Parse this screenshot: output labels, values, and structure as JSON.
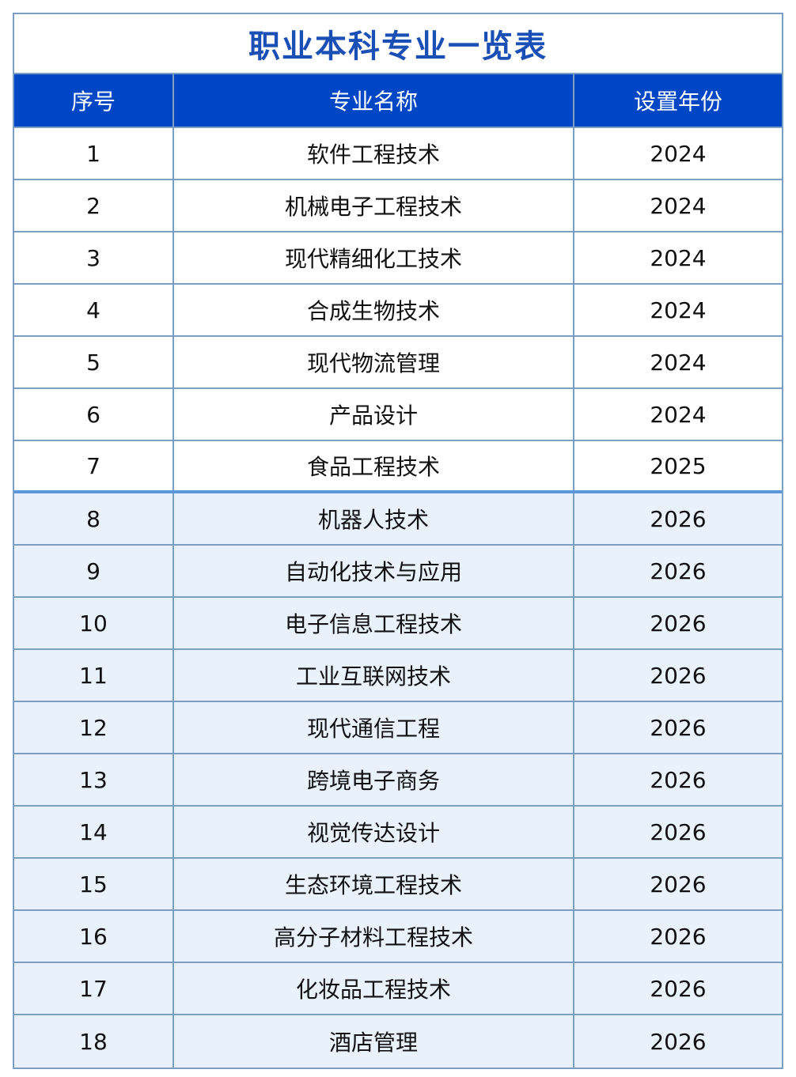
{
  "title": "职业本科专业一览表",
  "colors": {
    "header_bg": "#0047c6",
    "title": "#1a4fb5",
    "alt_row_bg": "#e8f1fc",
    "border": "#7a9fc4"
  },
  "headers": [
    "序号",
    "专业名称",
    "设置年份"
  ],
  "rows": [
    [
      "1",
      "软件工程技术",
      "2024"
    ],
    [
      "2",
      "机械电子工程技术",
      "2024"
    ],
    [
      "3",
      "现代精细化工技术",
      "2024"
    ],
    [
      "4",
      "合成生物技术",
      "2024"
    ],
    [
      "5",
      "现代物流管理",
      "2024"
    ],
    [
      "6",
      "产品设计",
      "2024"
    ],
    [
      "7",
      "食品工程技术",
      "2025"
    ],
    [
      "8",
      "机器人技术",
      "2026"
    ],
    [
      "9",
      "自动化技术与应用",
      "2026"
    ],
    [
      "10",
      "电子信息工程技术",
      "2026"
    ],
    [
      "11",
      "工业互联网技术",
      "2026"
    ],
    [
      "12",
      "现代通信工程",
      "2026"
    ],
    [
      "13",
      "跨境电子商务",
      "2026"
    ],
    [
      "14",
      "视觉传达设计",
      "2026"
    ],
    [
      "15",
      "生态环境工程技术",
      "2026"
    ],
    [
      "16",
      "高分子材料工程技术",
      "2026"
    ],
    [
      "17",
      "化妆品工程技术",
      "2026"
    ],
    [
      "18",
      "酒店管理",
      "2026"
    ]
  ]
}
